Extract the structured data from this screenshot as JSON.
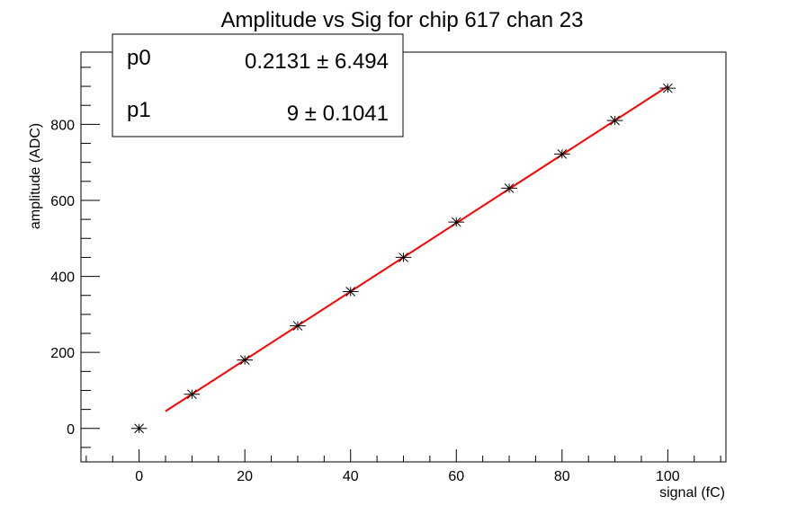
{
  "chart_data": {
    "type": "scatter",
    "title": "Amplitude vs Sig for chip 617 chan 23",
    "xlabel": "signal (fC)",
    "ylabel": "amplitude (ADC)",
    "xlim": [
      -11,
      111
    ],
    "ylim": [
      -88,
      990
    ],
    "x_ticks": [
      0,
      20,
      40,
      60,
      80,
      100
    ],
    "y_ticks": [
      0,
      200,
      400,
      600,
      800
    ],
    "series": [
      {
        "marker": "star",
        "color": "#000000",
        "x": [
          0,
          10,
          20,
          30,
          40,
          50,
          60,
          70,
          80,
          90,
          100
        ],
        "y": [
          0,
          90,
          180,
          270,
          360,
          450,
          543,
          632,
          722,
          810,
          895
        ],
        "xerr": 1.5
      }
    ],
    "fit": {
      "color": "#ff0000",
      "x_range": [
        5,
        100
      ],
      "params": [
        {
          "name": "p0",
          "value": "0.2131",
          "pm": "±",
          "error": "6.494"
        },
        {
          "name": "p1",
          "value": "9",
          "pm": "±",
          "error": "0.1041"
        }
      ]
    },
    "legend_position": "top-left",
    "grid": false
  }
}
